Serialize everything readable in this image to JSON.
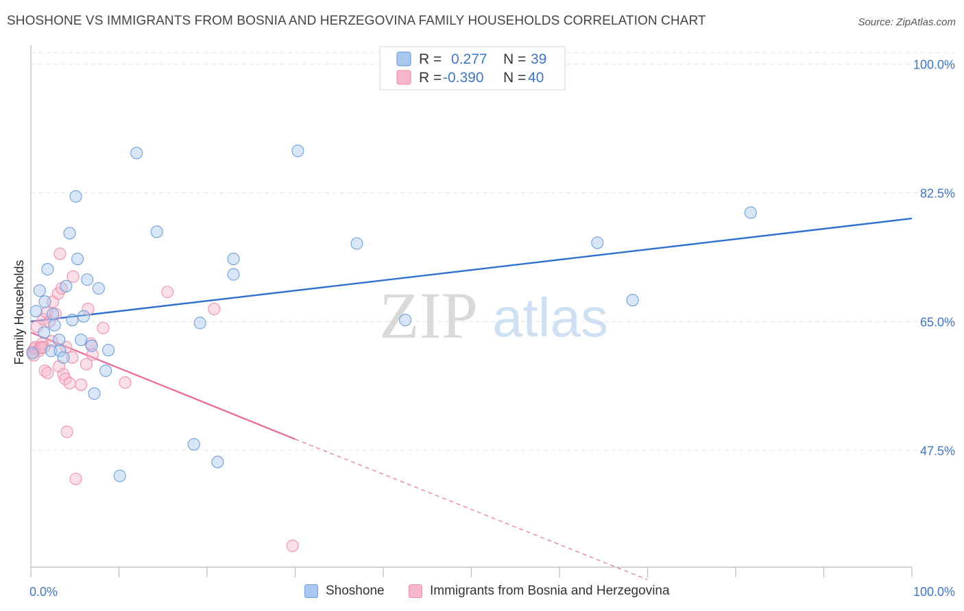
{
  "title": "SHOSHONE VS IMMIGRANTS FROM BOSNIA AND HERZEGOVINA FAMILY HOUSEHOLDS CORRELATION CHART",
  "source": "Source: ZipAtlas.com",
  "watermark": {
    "zip": "ZIP",
    "atlas": "atlas"
  },
  "legend_box": {
    "rows": [
      {
        "r_label": "R =",
        "r_value": "0.277",
        "n_label": "N =",
        "n_value": "39"
      },
      {
        "r_label": "R =",
        "r_value": "-0.390",
        "n_label": "N =",
        "n_value": "40"
      }
    ]
  },
  "bottom_legend": {
    "items": [
      {
        "label": "Shoshone"
      },
      {
        "label": "Immigrants from Bosnia and Herzegovina"
      }
    ]
  },
  "colors": {
    "blue_fill": "#a9c8ef",
    "blue_stroke": "#6f9fdc",
    "blue_line": "#2f6fcd",
    "pink_fill": "#f6b7ca",
    "pink_stroke": "#ee8fab",
    "pink_line": "#e8709a",
    "grid": "#e3e3e3",
    "tick_text": "#3f76c4"
  },
  "chart_data": {
    "type": "scatter",
    "title": "SHOSHONE VS IMMIGRANTS FROM BOSNIA AND HERZEGOVINA FAMILY HOUSEHOLDS CORRELATION CHART",
    "xlabel": "",
    "ylabel": "Family Households",
    "xlim": [
      0,
      100
    ],
    "ylim": [
      31.6,
      102
    ],
    "x_tick_labels": [
      {
        "value": 0,
        "label": "0.0%"
      },
      {
        "value": 100,
        "label": "100.0%"
      }
    ],
    "x_minor_ticks": [
      10,
      20,
      30,
      40,
      50,
      60,
      70,
      80,
      90
    ],
    "y_ticks": [
      {
        "value": 100,
        "label": "100.0%"
      },
      {
        "value": 82.5,
        "label": "82.5%"
      },
      {
        "value": 65,
        "label": "65.0%"
      },
      {
        "value": 47.5,
        "label": "47.5%"
      }
    ],
    "series": [
      {
        "name": "Shoshone",
        "r": 0.277,
        "n": 39,
        "trend": {
          "x0": 0,
          "y0": 65.0,
          "x1": 100,
          "y1": 79.0
        },
        "points": [
          [
            0.6,
            66.4
          ],
          [
            1.0,
            69.2
          ],
          [
            1.5,
            63.5
          ],
          [
            1.6,
            67.7
          ],
          [
            1.9,
            72.1
          ],
          [
            2.3,
            61.0
          ],
          [
            2.5,
            66.0
          ],
          [
            2.7,
            64.5
          ],
          [
            3.2,
            62.5
          ],
          [
            3.3,
            61.0
          ],
          [
            3.7,
            60.1
          ],
          [
            4.0,
            69.8
          ],
          [
            4.4,
            77.0
          ],
          [
            4.7,
            65.2
          ],
          [
            5.1,
            82.0
          ],
          [
            5.3,
            73.5
          ],
          [
            5.7,
            62.5
          ],
          [
            6.0,
            65.7
          ],
          [
            6.4,
            70.7
          ],
          [
            6.9,
            61.7
          ],
          [
            7.2,
            55.2
          ],
          [
            7.7,
            69.5
          ],
          [
            8.5,
            58.3
          ],
          [
            8.8,
            61.1
          ],
          [
            10.1,
            44.0
          ],
          [
            12.0,
            87.9
          ],
          [
            14.3,
            77.2
          ],
          [
            18.5,
            48.3
          ],
          [
            19.2,
            64.8
          ],
          [
            21.2,
            45.9
          ],
          [
            23.0,
            73.5
          ],
          [
            23.0,
            71.4
          ],
          [
            30.3,
            88.2
          ],
          [
            37.0,
            75.6
          ],
          [
            42.5,
            65.2
          ],
          [
            64.3,
            75.7
          ],
          [
            68.3,
            67.9
          ],
          [
            81.7,
            79.8
          ],
          [
            0.2,
            60.7
          ]
        ]
      },
      {
        "name": "Immigrants from Bosnia and Herzegovina",
        "r": -0.39,
        "n": 40,
        "trend": {
          "x0": 0,
          "y0": 63.5,
          "x1": 30,
          "y1": 49.0,
          "dashed_x1": 70,
          "dashed_y1": 29.9
        },
        "points": [
          [
            0.2,
            60.9
          ],
          [
            0.4,
            61.3
          ],
          [
            0.5,
            61.5
          ],
          [
            0.7,
            64.3
          ],
          [
            0.9,
            61.0
          ],
          [
            1.1,
            61.5
          ],
          [
            1.3,
            62.0
          ],
          [
            1.4,
            65.3
          ],
          [
            1.5,
            61.5
          ],
          [
            1.6,
            58.3
          ],
          [
            1.8,
            66.2
          ],
          [
            1.9,
            58.0
          ],
          [
            2.1,
            65.0
          ],
          [
            2.4,
            62.3
          ],
          [
            2.5,
            67.7
          ],
          [
            2.8,
            66.0
          ],
          [
            3.1,
            68.8
          ],
          [
            3.2,
            58.9
          ],
          [
            3.3,
            74.2
          ],
          [
            3.5,
            69.5
          ],
          [
            3.7,
            57.8
          ],
          [
            3.9,
            57.2
          ],
          [
            4.0,
            61.5
          ],
          [
            4.1,
            50.0
          ],
          [
            4.4,
            56.6
          ],
          [
            4.7,
            60.1
          ],
          [
            4.8,
            71.1
          ],
          [
            5.1,
            43.6
          ],
          [
            5.7,
            56.4
          ],
          [
            6.3,
            59.2
          ],
          [
            6.5,
            66.7
          ],
          [
            6.8,
            62.0
          ],
          [
            7.0,
            60.5
          ],
          [
            8.2,
            64.1
          ],
          [
            10.7,
            56.7
          ],
          [
            15.5,
            69.0
          ],
          [
            20.8,
            66.7
          ],
          [
            29.7,
            34.5
          ],
          [
            0.3,
            60.4
          ],
          [
            1.2,
            61.4
          ]
        ]
      }
    ]
  }
}
